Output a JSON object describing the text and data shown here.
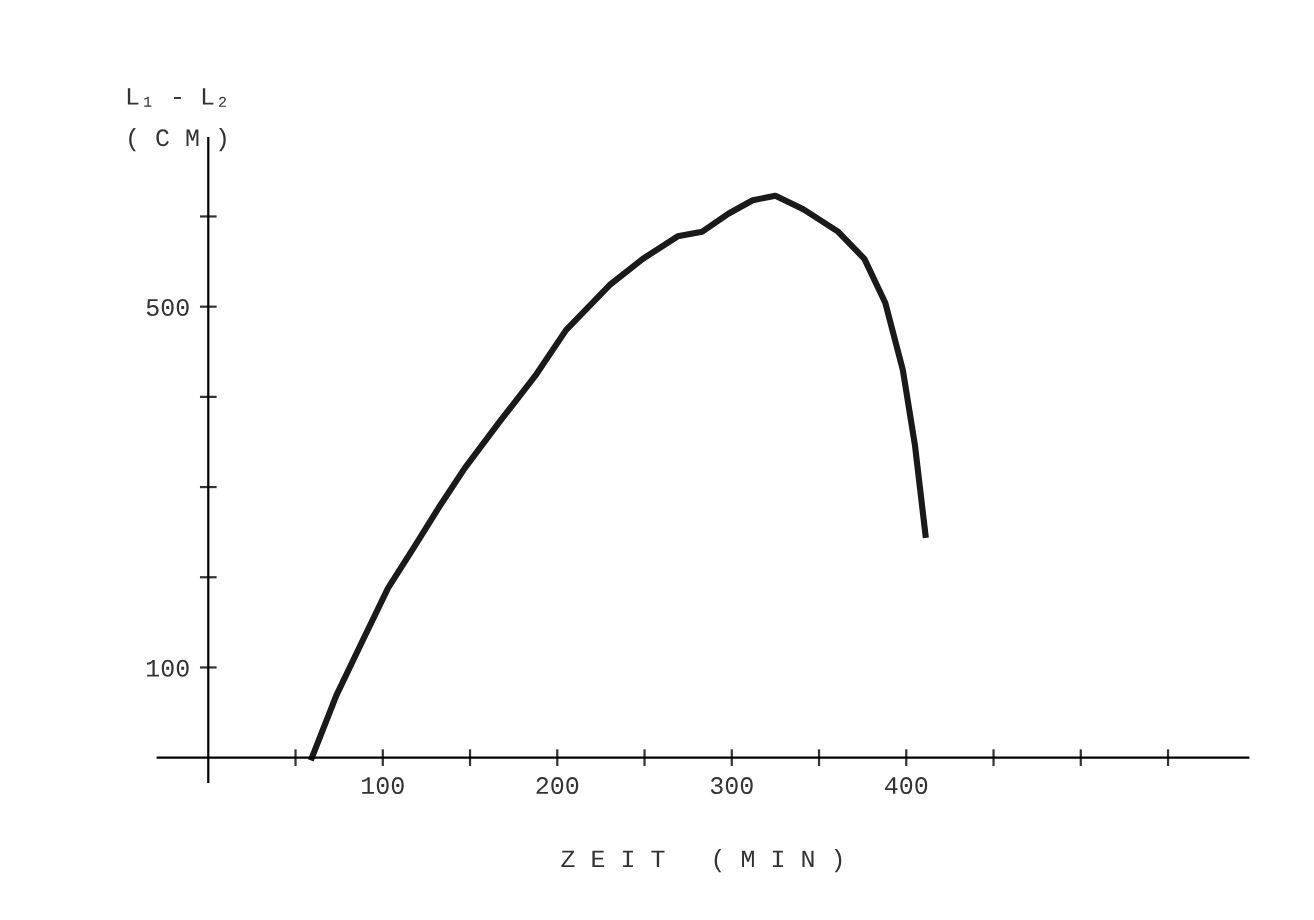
{
  "chart_data": {
    "type": "line",
    "xlabel": "Z E I T   ( M I N )",
    "ylabel": "L₁ - L₂\n( C M )",
    "x": [
      59.4,
      73.4,
      88,
      103,
      117.5,
      132,
      147,
      166,
      188,
      205,
      220,
      230,
      249,
      269,
      283,
      298,
      312,
      325,
      341,
      361,
      376,
      388,
      398,
      405,
      411
    ],
    "series": [
      {
        "color": "#1a1a1a",
        "values": [
          0,
          69,
          128,
          188,
          232,
          277,
          321,
          370,
          425,
          474,
          504,
          524,
          553,
          578,
          583,
          603,
          618,
          623,
          608,
          583,
          553,
          504,
          430,
          346,
          247
        ]
      }
    ],
    "xlim": [
      -29,
      596
    ],
    "ylim": [
      -27,
      687
    ],
    "xticks": [
      {
        "value": 50,
        "label": null
      },
      100,
      200,
      300,
      400,
      {
        "value": 150,
        "label": null
      },
      {
        "value": 250,
        "label": null
      },
      {
        "value": 350,
        "label": null
      },
      {
        "value": 450,
        "label": null
      },
      {
        "value": 500,
        "label": null
      },
      {
        "value": 550,
        "label": null
      }
    ],
    "yticks": [
      100,
      {
        "value": 200,
        "label": null
      },
      {
        "value": 300,
        "label": null
      },
      {
        "value": 400,
        "label": null
      },
      500,
      {
        "value": 600,
        "label": null
      }
    ],
    "grid": false,
    "legend": false,
    "marker": "none",
    "line_style": "solid"
  }
}
